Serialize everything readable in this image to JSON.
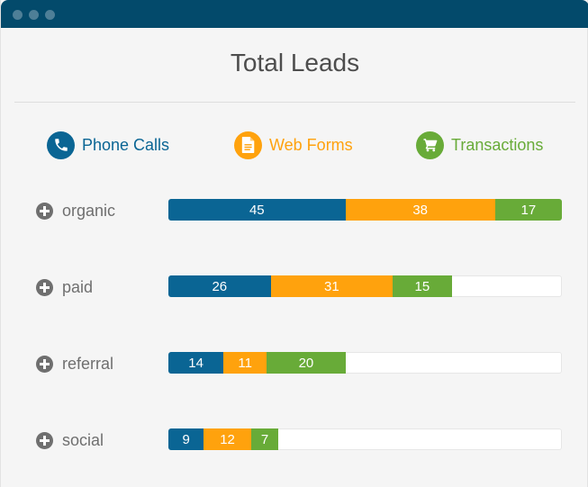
{
  "chart_data": {
    "type": "bar",
    "orientation": "horizontal",
    "stacked": true,
    "title": "Total Leads",
    "categories": [
      "organic",
      "paid",
      "referral",
      "social"
    ],
    "series": [
      {
        "name": "Phone Calls",
        "color": "#0a6594",
        "icon": "phone-icon",
        "values": [
          45,
          26,
          14,
          9
        ]
      },
      {
        "name": "Web Forms",
        "color": "#ffa20d",
        "icon": "document-icon",
        "values": [
          38,
          31,
          11,
          12
        ]
      },
      {
        "name": "Transactions",
        "color": "#68ab38",
        "icon": "cart-icon",
        "values": [
          17,
          15,
          20,
          7
        ]
      }
    ],
    "xlim": [
      0,
      100
    ],
    "legend_position": "top"
  }
}
